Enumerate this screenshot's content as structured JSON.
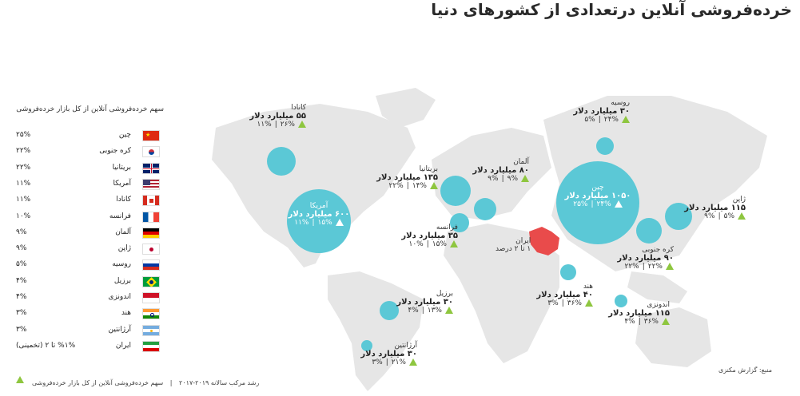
{
  "title": "خرده‌فروشی آنلاین درتعدادی از کشورهای دنیا",
  "colors": {
    "bubble": "#5bc8d6",
    "map": "#e6e6e6",
    "iran": "#e94b4b",
    "triangle": "#8ec63f"
  },
  "legend": {
    "header": "سهم خرده‌فروشی آنلاین از کل بازار خرده‌فروشی",
    "items": [
      {
        "name": "چین",
        "pct": "۲۵%",
        "flag": "cn"
      },
      {
        "name": "کره جنوبی",
        "pct": "۲۲%",
        "flag": "kr"
      },
      {
        "name": "بریتانیا",
        "pct": "۲۲%",
        "flag": "gb"
      },
      {
        "name": "آمریکا",
        "pct": "۱۱%",
        "flag": "us"
      },
      {
        "name": "کانادا",
        "pct": "۱۱%",
        "flag": "ca"
      },
      {
        "name": "فرانسه",
        "pct": "۱۰%",
        "flag": "fr"
      },
      {
        "name": "آلمان",
        "pct": "۹%",
        "flag": "de"
      },
      {
        "name": "ژاپن",
        "pct": "۹%",
        "flag": "jp"
      },
      {
        "name": "روسیه",
        "pct": "۵%",
        "flag": "ru"
      },
      {
        "name": "برزیل",
        "pct": "۴%",
        "flag": "br"
      },
      {
        "name": "اندونزی",
        "pct": "۴%",
        "flag": "id"
      },
      {
        "name": "هند",
        "pct": "۳%",
        "flag": "in"
      },
      {
        "name": "آرژانتین",
        "pct": "۳%",
        "flag": "ar"
      },
      {
        "name": "ایران",
        "pct": "(تخمینی) ۱% تا ۲%",
        "flag": "ir"
      }
    ]
  },
  "chart_data": {
    "type": "bubble-map",
    "title": "خرده‌فروشی آنلاین درتعدادی از کشورهای دنیا",
    "value_unit": "میلیارد دلار",
    "countries": [
      {
        "name": "چین",
        "value": 1050,
        "value_text": "۱۰۵۰ میلیارد دلار",
        "growth": "۲۴%",
        "share": "۲۵%"
      },
      {
        "name": "آمریکا",
        "value": 600,
        "value_text": "۶۰۰ میلیارد دلار",
        "growth": "۱۵%",
        "share": "۱۱%"
      },
      {
        "name": "بریتانیا",
        "value": 135,
        "value_text": "۱۳۵ میلیارد دلار",
        "growth": "۱۴%",
        "share": "۲۲%"
      },
      {
        "name": "ژاپن",
        "value": 115,
        "value_text": "۱۱۵ میلیارد دلار",
        "growth": "۵%",
        "share": "۹%"
      },
      {
        "name": "اندونزی",
        "value": 115,
        "value_text": "۱۱۵ میلیارد دلار",
        "growth": "۳۶%",
        "share": "۴%"
      },
      {
        "name": "کره جنوبی",
        "value": 90,
        "value_text": "۹۰ میلیارد دلار",
        "growth": "۲۲%",
        "share": "۲۲%"
      },
      {
        "name": "آلمان",
        "value": 80,
        "value_text": "۸۰ میلیارد دلار",
        "growth": "۹%",
        "share": "۹%"
      },
      {
        "name": "کانادا",
        "value": 55,
        "value_text": "۵۵ میلیارد دلار",
        "growth": "۲۶%",
        "share": "۱۱%"
      },
      {
        "name": "هند",
        "value": 40,
        "value_text": "۴۰ میلیارد دلار",
        "growth": "۳۶%",
        "share": "۳%"
      },
      {
        "name": "فرانسه",
        "value": 35,
        "value_text": "۳۵ میلیارد دلار",
        "growth": "۱۵%",
        "share": "۱۰%"
      },
      {
        "name": "روسیه",
        "value": 30,
        "value_text": "۳۰ میلیارد دلار",
        "growth": "۲۴%",
        "share": "۵%"
      },
      {
        "name": "برزیل",
        "value": 30,
        "value_text": "۳۰ میلیارد دلار",
        "growth": "۱۳%",
        "share": "۴%"
      },
      {
        "name": "آرژانتین",
        "value": 30,
        "value_text": "۳۰ میلیارد دلار",
        "growth": "۲۱%",
        "share": "۳%"
      }
    ],
    "iran": {
      "name": "ایران",
      "note": "۱ تا ۲ درصد"
    }
  },
  "footer": {
    "share_note": "سهم خرده‌فروشی آنلاین از کل بازار خرده‌فروشی",
    "separator": "|",
    "growth_note": "رشد مرکب سالانه ۲۰۱۹-۲۰۱۷",
    "source": "منبع: گزارش مکنزی"
  }
}
